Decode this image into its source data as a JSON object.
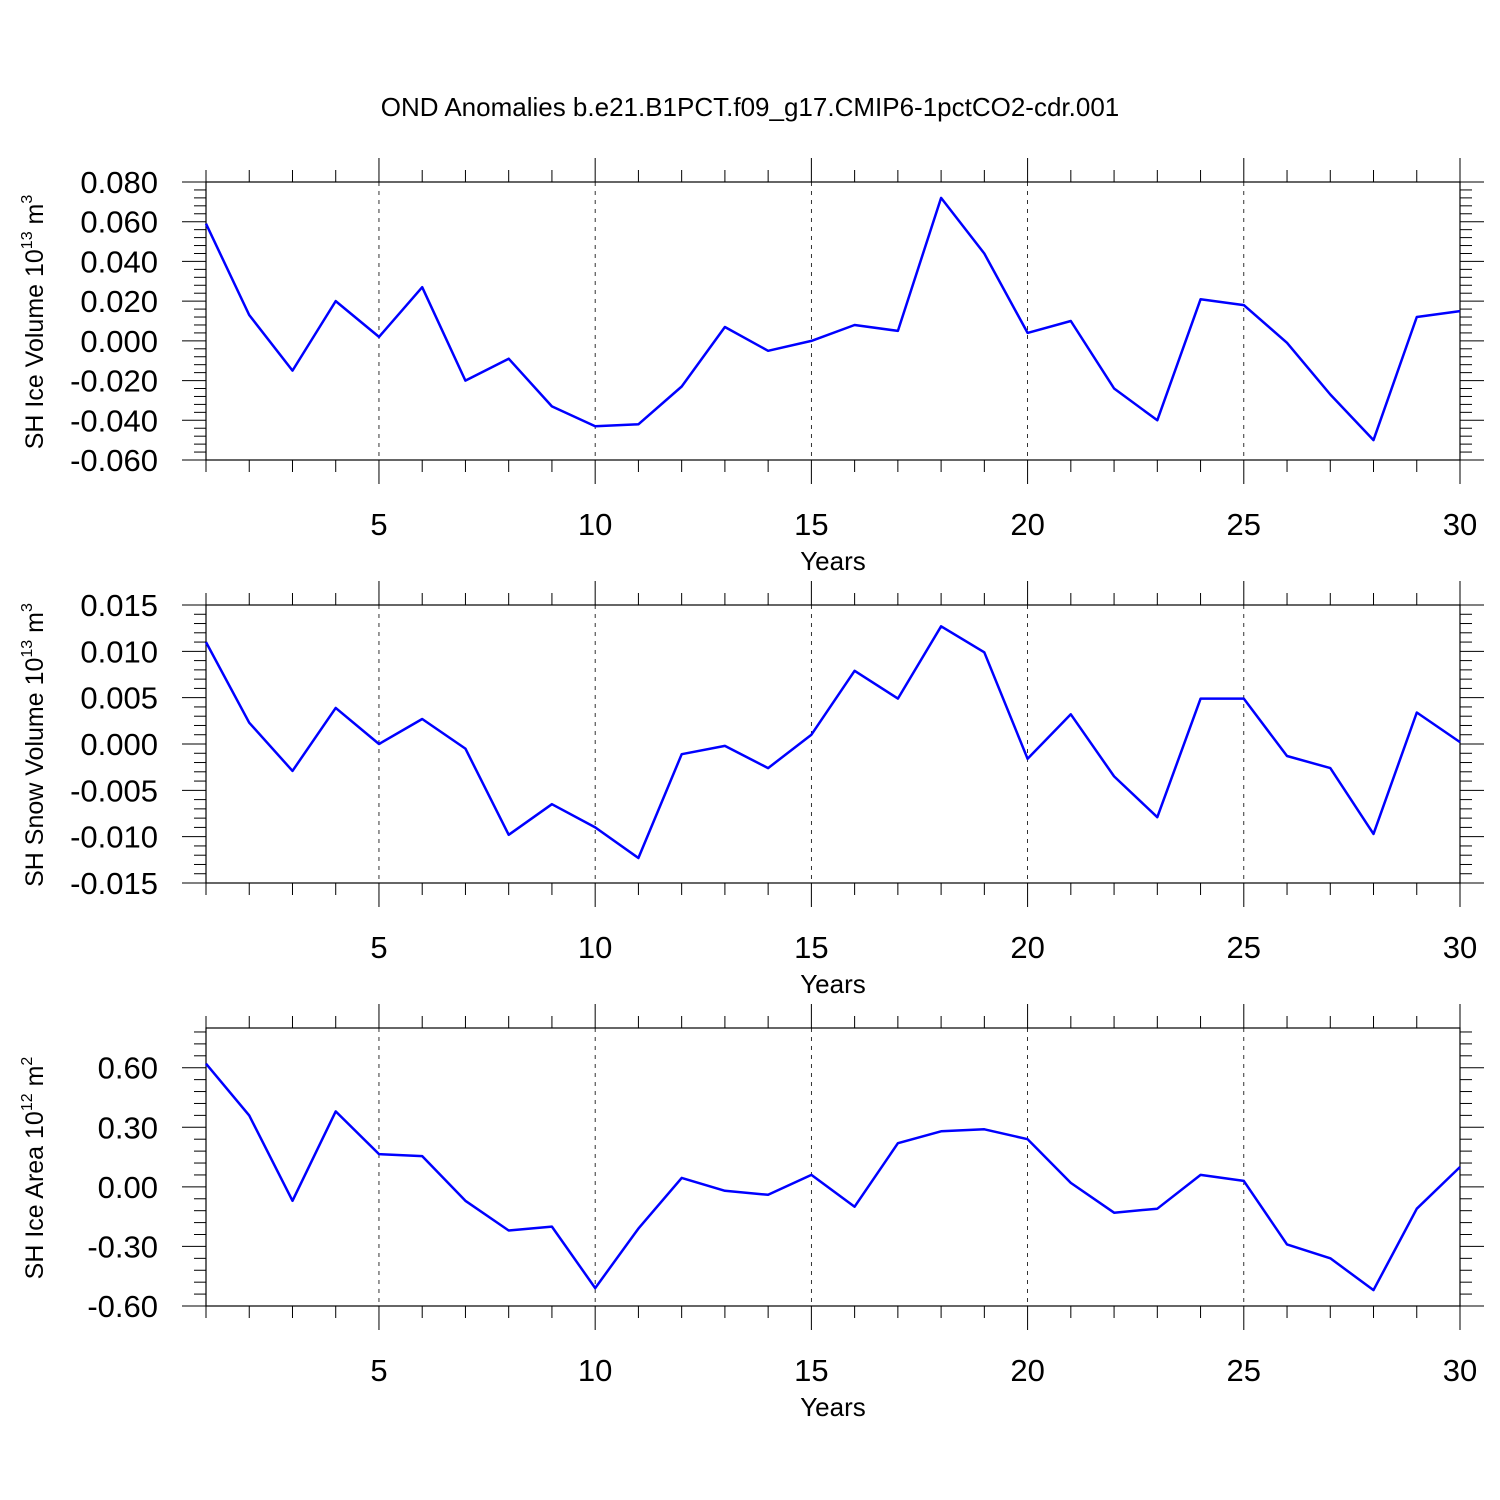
{
  "title": "OND Anomalies b.e21.B1PCT.f09_g17.CMIP6-1pctCO2-cdr.001",
  "colors": {
    "line": "#0000ff",
    "axis": "#000000",
    "grid": "#000000"
  },
  "chart_data": [
    {
      "type": "line",
      "ylabel": "SH Ice Volume 10",
      "ylabel_exp": "13",
      "ylabel_unit": "m",
      "ylabel_unit_exp": "3",
      "xlabel": "Years",
      "xlim": [
        1,
        30
      ],
      "ylim": [
        -0.06,
        0.08
      ],
      "yticks": [
        -0.06,
        -0.04,
        -0.02,
        0.0,
        0.02,
        0.04,
        0.06,
        0.08
      ],
      "ytick_labels": [
        "-0.060",
        "-0.040",
        "-0.020",
        "0.000",
        "0.020",
        "0.040",
        "0.060",
        "0.080"
      ],
      "xticks": [
        5,
        10,
        15,
        20,
        25,
        30
      ],
      "xtick_labels": [
        "5",
        "10",
        "15",
        "20",
        "25",
        "30"
      ],
      "grid": "vertical dashed at major x ticks",
      "x": [
        1,
        2,
        3,
        4,
        5,
        6,
        7,
        8,
        9,
        10,
        11,
        12,
        13,
        14,
        15,
        16,
        17,
        18,
        19,
        20,
        21,
        22,
        23,
        24,
        25,
        26,
        27,
        28,
        29,
        30
      ],
      "y": [
        0.059,
        0.013,
        -0.015,
        0.02,
        0.002,
        0.027,
        -0.02,
        -0.009,
        -0.033,
        -0.043,
        -0.042,
        -0.023,
        0.007,
        -0.005,
        0.0,
        0.008,
        0.005,
        0.072,
        0.044,
        0.004,
        0.01,
        -0.024,
        -0.04,
        0.021,
        0.018,
        -0.001,
        -0.027,
        -0.05,
        0.012,
        0.015
      ]
    },
    {
      "type": "line",
      "ylabel": "SH Snow Volume 10",
      "ylabel_exp": "13",
      "ylabel_unit": "m",
      "ylabel_unit_exp": "3",
      "xlabel": "Years",
      "xlim": [
        1,
        30
      ],
      "ylim": [
        -0.015,
        0.015
      ],
      "yticks": [
        -0.015,
        -0.01,
        -0.005,
        0.0,
        0.005,
        0.01,
        0.015
      ],
      "ytick_labels": [
        "-0.015",
        "-0.010",
        "-0.005",
        "0.000",
        "0.005",
        "0.010",
        "0.015"
      ],
      "xticks": [
        5,
        10,
        15,
        20,
        25,
        30
      ],
      "xtick_labels": [
        "5",
        "10",
        "15",
        "20",
        "25",
        "30"
      ],
      "grid": "vertical dashed at major x ticks",
      "x": [
        1,
        2,
        3,
        4,
        5,
        6,
        7,
        8,
        9,
        10,
        11,
        12,
        13,
        14,
        15,
        16,
        17,
        18,
        19,
        20,
        21,
        22,
        23,
        24,
        25,
        26,
        27,
        28,
        29,
        30
      ],
      "y": [
        0.011,
        0.0023,
        -0.0029,
        0.0039,
        0.0,
        0.0027,
        -0.0005,
        -0.0098,
        -0.0065,
        -0.009,
        -0.0123,
        -0.0011,
        -0.0002,
        -0.0026,
        0.001,
        0.0079,
        0.0049,
        0.0127,
        0.0099,
        -0.0016,
        0.0032,
        -0.0035,
        -0.0079,
        0.0049,
        0.0049,
        -0.0013,
        -0.0026,
        -0.0097,
        0.0034,
        0.0002
      ]
    },
    {
      "type": "line",
      "ylabel": "SH Ice Area 10",
      "ylabel_exp": "12",
      "ylabel_unit": "m",
      "ylabel_unit_exp": "2",
      "xlabel": "Years",
      "xlim": [
        1,
        30
      ],
      "ylim": [
        -0.6,
        0.8
      ],
      "yticks": [
        -0.6,
        -0.3,
        0.0,
        0.3,
        0.6
      ],
      "ytick_labels": [
        "-0.60",
        "-0.30",
        "0.00",
        "0.30",
        "0.60"
      ],
      "xticks": [
        5,
        10,
        15,
        20,
        25,
        30
      ],
      "xtick_labels": [
        "5",
        "10",
        "15",
        "20",
        "25",
        "30"
      ],
      "grid": "vertical dashed at major x ticks",
      "x": [
        1,
        2,
        3,
        4,
        5,
        6,
        7,
        8,
        9,
        10,
        11,
        12,
        13,
        14,
        15,
        16,
        17,
        18,
        19,
        20,
        21,
        22,
        23,
        24,
        25,
        26,
        27,
        28,
        29,
        30
      ],
      "y": [
        0.62,
        0.36,
        -0.07,
        0.38,
        0.165,
        0.155,
        -0.07,
        -0.22,
        -0.2,
        -0.51,
        -0.21,
        0.045,
        -0.02,
        -0.04,
        0.06,
        -0.1,
        0.22,
        0.28,
        0.29,
        0.24,
        0.02,
        -0.13,
        -0.11,
        0.06,
        0.03,
        -0.29,
        -0.36,
        -0.52,
        -0.11,
        0.1
      ]
    }
  ]
}
